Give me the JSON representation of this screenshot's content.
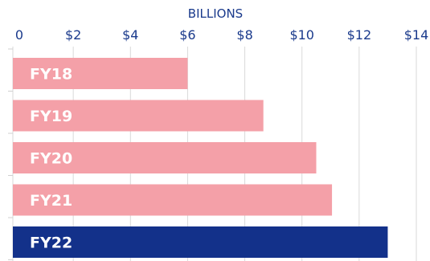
{
  "chart_data": {
    "type": "bar",
    "orientation": "horizontal",
    "title": "",
    "xlabel": "BILLIONS",
    "ylabel": "",
    "categories": [
      "FY18",
      "FY19",
      "FY20",
      "FY21",
      "FY22"
    ],
    "values": [
      6.0,
      8.65,
      10.5,
      11.05,
      13.0
    ],
    "xlim": [
      0,
      14
    ],
    "x_ticks": [
      0,
      2,
      4,
      6,
      8,
      10,
      12,
      14
    ],
    "x_tick_labels": [
      "0",
      "$2",
      "$4",
      "$6",
      "$8",
      "$10",
      "$12",
      "$14"
    ],
    "grid": true,
    "colors": {
      "default_bar": "#f4a0a8",
      "highlight_bar": "#13318a",
      "text_primary": "#1a3a8c"
    },
    "highlight_category": "FY22"
  }
}
